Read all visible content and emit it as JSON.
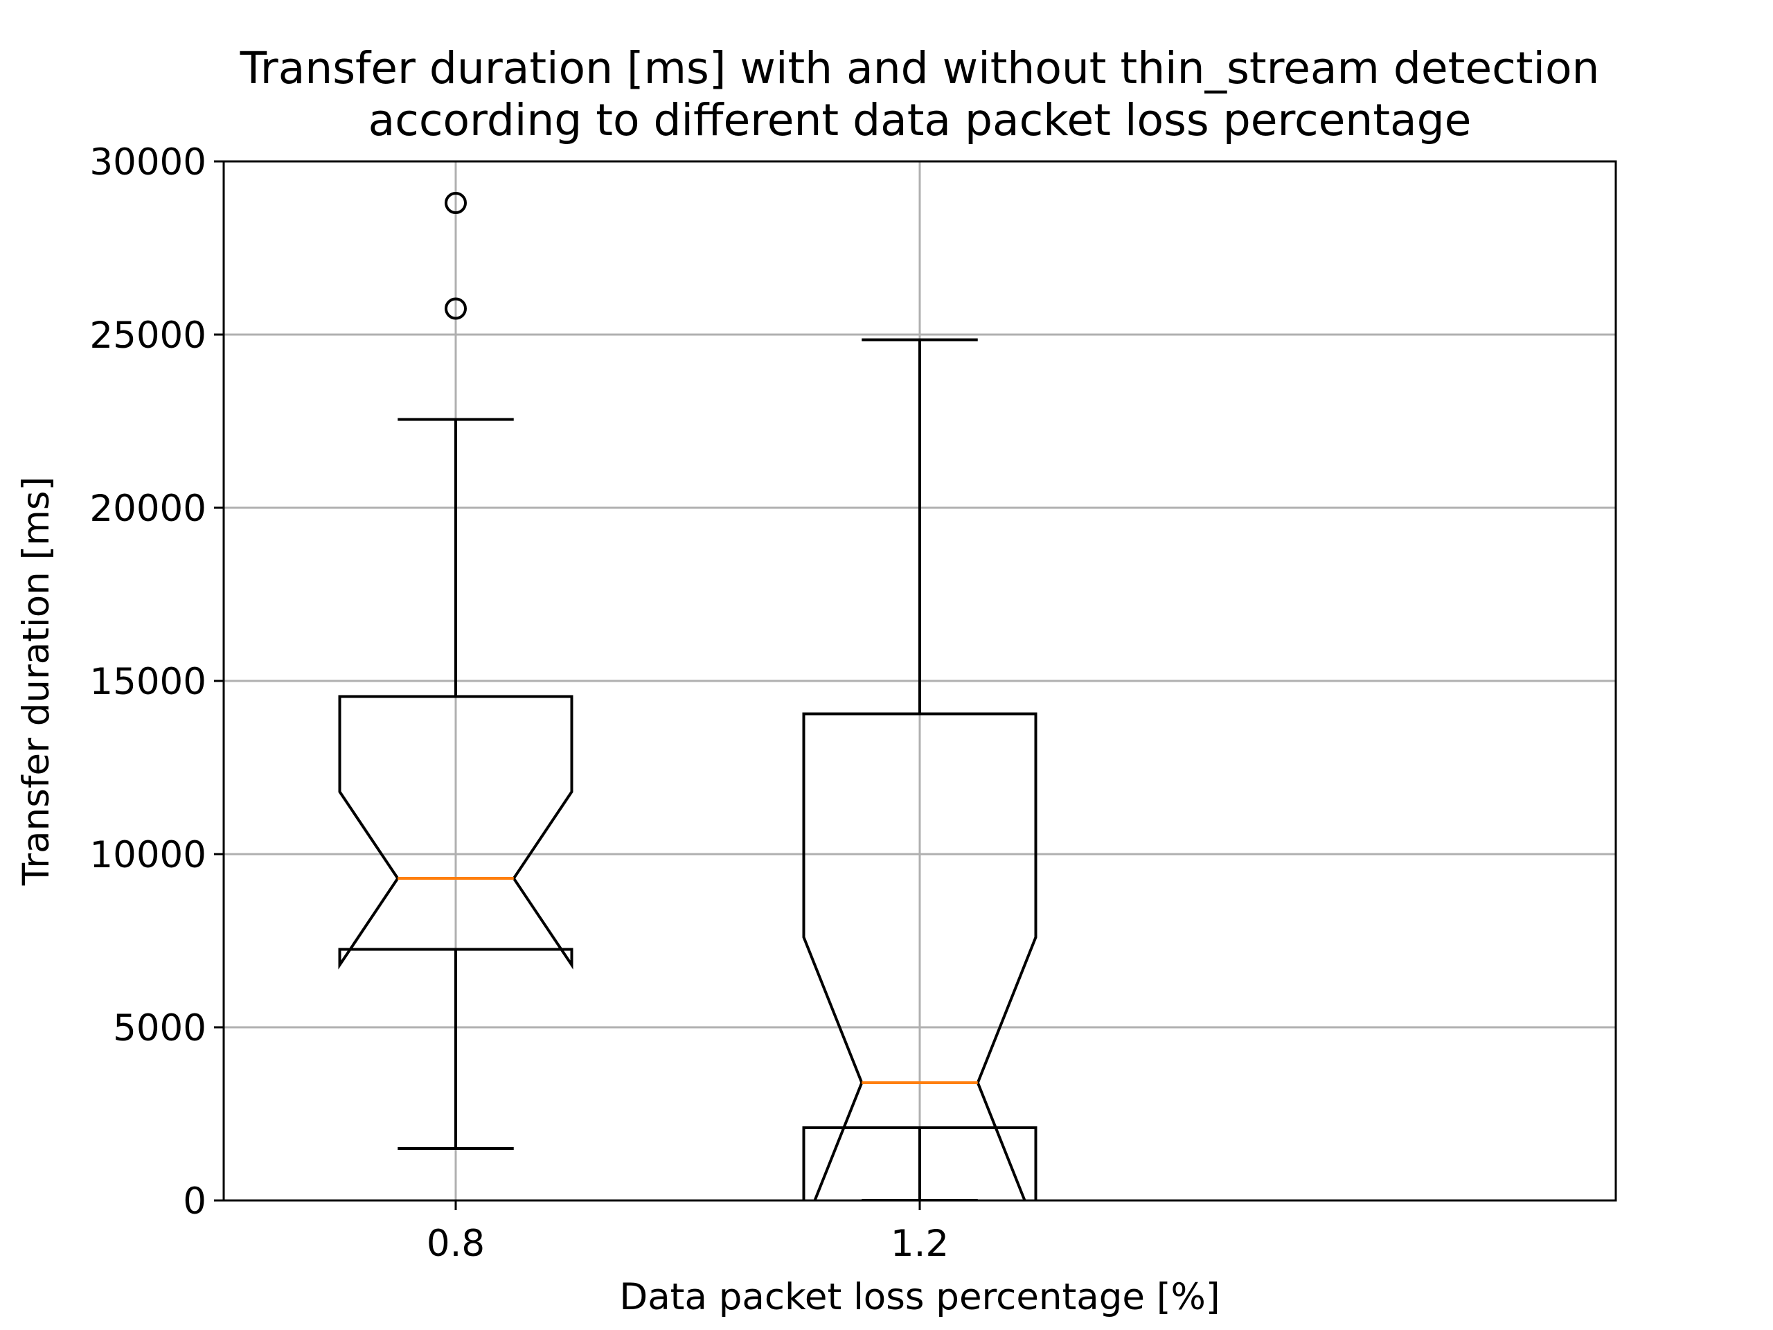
{
  "chart_data": {
    "type": "boxplot",
    "title_lines": [
      "Transfer duration [ms] with and without thin_stream detection",
      "according to different data packet loss percentage"
    ],
    "xlabel": "Data packet loss percentage [%]",
    "ylabel": "Transfer duration [ms]",
    "categories": [
      "0.8",
      "1.2"
    ],
    "ylim": [
      0,
      30000
    ],
    "yticks": [
      0,
      5000,
      10000,
      15000,
      20000,
      25000,
      30000
    ],
    "grid": true,
    "notched": true,
    "boxes": [
      {
        "category": "0.8",
        "whisker_low": 1500,
        "q1": 7250,
        "median": 9300,
        "q3": 14550,
        "whisker_high": 22550,
        "notch_low": 6800,
        "notch_high": 11800,
        "outliers": [
          25750,
          28800
        ]
      },
      {
        "category": "1.2",
        "whisker_low": 0,
        "q1": 2100,
        "median": 3400,
        "q3": 14050,
        "whisker_high": 24850,
        "notch_low": -800,
        "notch_high": 7600,
        "outliers": []
      }
    ],
    "colors": {
      "box": "#000000",
      "median": "#ff7f0e",
      "grid": "#b0b0b0",
      "frame": "#000000"
    }
  }
}
